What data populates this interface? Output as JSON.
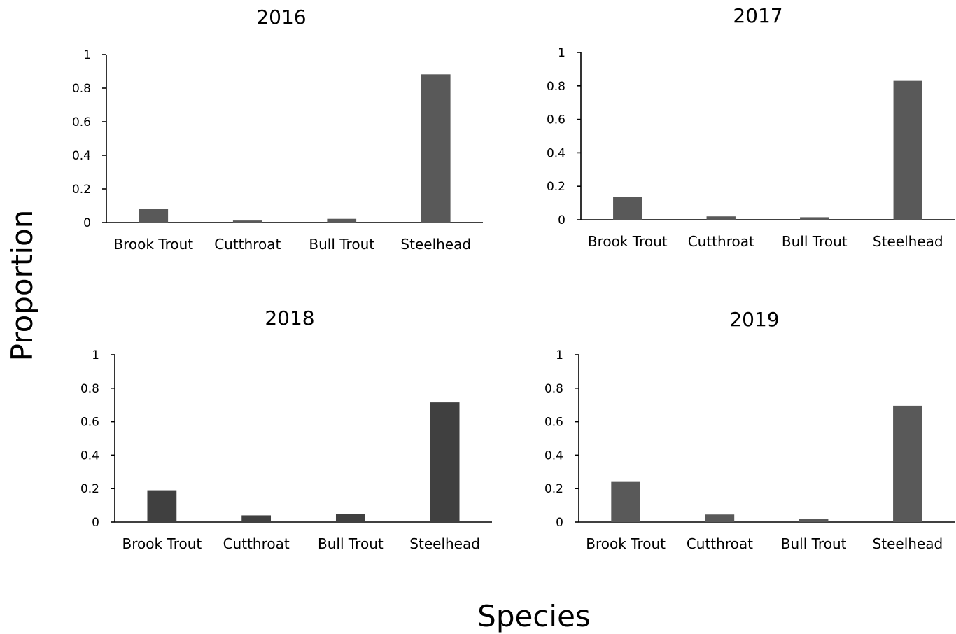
{
  "figure": {
    "ylabel": "Proportion",
    "xlabel": "Species"
  },
  "chart_data": [
    {
      "type": "bar",
      "title": "2016",
      "categories": [
        "Brook Trout",
        "Cutthroat",
        "Bull Trout",
        "Steelhead"
      ],
      "values": [
        0.08,
        0.012,
        0.022,
        0.882
      ],
      "ylim": [
        0,
        1
      ],
      "yticks": [
        "0",
        "0.2",
        "0.4",
        "0.6",
        "0.8",
        "1"
      ],
      "color": "#595959",
      "grid": false
    },
    {
      "type": "bar",
      "title": "2017",
      "categories": [
        "Brook Trout",
        "Cutthroat",
        "Bull Trout",
        "Steelhead"
      ],
      "values": [
        0.135,
        0.02,
        0.015,
        0.83
      ],
      "ylim": [
        0,
        1
      ],
      "yticks": [
        "0",
        "0.2",
        "0.4",
        "0.6",
        "0.8",
        "1"
      ],
      "color": "#595959",
      "grid": false
    },
    {
      "type": "bar",
      "title": "2018",
      "categories": [
        "Brook Trout",
        "Cutthroat",
        "Bull Trout",
        "Steelhead"
      ],
      "values": [
        0.19,
        0.04,
        0.05,
        0.715
      ],
      "ylim": [
        0,
        1
      ],
      "yticks": [
        "0",
        "0.2",
        "0.4",
        "0.6",
        "0.8",
        "1"
      ],
      "color": "#404040",
      "grid": false
    },
    {
      "type": "bar",
      "title": "2019",
      "categories": [
        "Brook Trout",
        "Cutthroat",
        "Bull Trout",
        "Steelhead"
      ],
      "values": [
        0.24,
        0.045,
        0.02,
        0.695
      ],
      "ylim": [
        0,
        1
      ],
      "yticks": [
        "0",
        "0.2",
        "0.4",
        "0.6",
        "0.8",
        "1"
      ],
      "color": "#595959",
      "grid": false
    }
  ]
}
